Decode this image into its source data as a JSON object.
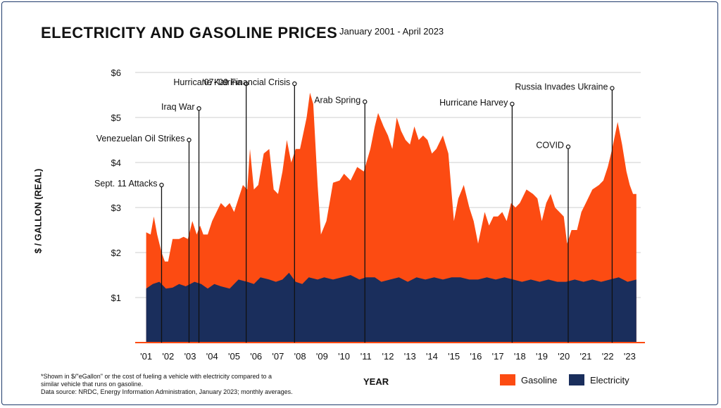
{
  "chart_data": {
    "type": "area",
    "title": "ELECTRICITY AND GASOLINE PRICES",
    "subtitle": "January 2001 - April 2023",
    "xlabel": "YEAR",
    "ylabel": "$ / GALLON (REAL)",
    "ylim": [
      0,
      6
    ],
    "y_ticks": [
      "$1",
      "$2",
      "$3",
      "$4",
      "$5",
      "$6"
    ],
    "x_ticks": [
      "'01",
      "'02",
      "'03",
      "'04",
      "'05",
      "'06",
      "'07",
      "'08",
      "'09",
      "'10",
      "'11",
      "'12",
      "'13",
      "'14",
      "'15",
      "'16",
      "'17",
      "'18",
      "'19",
      "'20",
      "'21",
      "'22",
      "'23"
    ],
    "grid": "horizontal",
    "legend_position": "bottom-right",
    "series": [
      {
        "name": "Gasoline",
        "color": "#fc4b12",
        "points": [
          [
            2001.0,
            2.45
          ],
          [
            2001.2,
            2.4
          ],
          [
            2001.35,
            2.8
          ],
          [
            2001.5,
            2.4
          ],
          [
            2001.7,
            2.0
          ],
          [
            2001.85,
            1.8
          ],
          [
            2002.0,
            1.8
          ],
          [
            2002.2,
            2.3
          ],
          [
            2002.5,
            2.3
          ],
          [
            2002.7,
            2.35
          ],
          [
            2002.9,
            2.3
          ],
          [
            2003.1,
            2.7
          ],
          [
            2003.3,
            2.4
          ],
          [
            2003.45,
            2.6
          ],
          [
            2003.6,
            2.4
          ],
          [
            2003.8,
            2.4
          ],
          [
            2004.0,
            2.7
          ],
          [
            2004.2,
            2.9
          ],
          [
            2004.4,
            3.1
          ],
          [
            2004.6,
            3.0
          ],
          [
            2004.8,
            3.1
          ],
          [
            2005.0,
            2.9
          ],
          [
            2005.2,
            3.2
          ],
          [
            2005.4,
            3.5
          ],
          [
            2005.6,
            3.4
          ],
          [
            2005.72,
            4.3
          ],
          [
            2005.9,
            3.4
          ],
          [
            2006.1,
            3.5
          ],
          [
            2006.35,
            4.2
          ],
          [
            2006.6,
            4.3
          ],
          [
            2006.8,
            3.4
          ],
          [
            2007.0,
            3.3
          ],
          [
            2007.2,
            3.8
          ],
          [
            2007.4,
            4.5
          ],
          [
            2007.6,
            4.0
          ],
          [
            2007.8,
            4.3
          ],
          [
            2008.0,
            4.3
          ],
          [
            2008.3,
            5.0
          ],
          [
            2008.45,
            5.55
          ],
          [
            2008.6,
            5.3
          ],
          [
            2008.8,
            3.5
          ],
          [
            2008.95,
            2.4
          ],
          [
            2009.2,
            2.7
          ],
          [
            2009.5,
            3.55
          ],
          [
            2009.8,
            3.6
          ],
          [
            2010.0,
            3.75
          ],
          [
            2010.3,
            3.6
          ],
          [
            2010.6,
            3.9
          ],
          [
            2010.9,
            3.8
          ],
          [
            2011.2,
            4.3
          ],
          [
            2011.4,
            4.8
          ],
          [
            2011.55,
            5.1
          ],
          [
            2011.8,
            4.8
          ],
          [
            2012.0,
            4.6
          ],
          [
            2012.2,
            4.3
          ],
          [
            2012.4,
            5.0
          ],
          [
            2012.6,
            4.7
          ],
          [
            2012.8,
            4.5
          ],
          [
            2013.0,
            4.4
          ],
          [
            2013.2,
            4.8
          ],
          [
            2013.4,
            4.5
          ],
          [
            2013.6,
            4.6
          ],
          [
            2013.8,
            4.5
          ],
          [
            2014.0,
            4.2
          ],
          [
            2014.2,
            4.3
          ],
          [
            2014.5,
            4.6
          ],
          [
            2014.75,
            4.2
          ],
          [
            2015.0,
            2.7
          ],
          [
            2015.2,
            3.2
          ],
          [
            2015.45,
            3.5
          ],
          [
            2015.7,
            3.0
          ],
          [
            2015.9,
            2.7
          ],
          [
            2016.1,
            2.2
          ],
          [
            2016.4,
            2.9
          ],
          [
            2016.6,
            2.6
          ],
          [
            2016.8,
            2.8
          ],
          [
            2017.0,
            2.8
          ],
          [
            2017.2,
            2.9
          ],
          [
            2017.4,
            2.7
          ],
          [
            2017.6,
            3.1
          ],
          [
            2017.8,
            3.0
          ],
          [
            2018.0,
            3.1
          ],
          [
            2018.3,
            3.4
          ],
          [
            2018.6,
            3.3
          ],
          [
            2018.8,
            3.2
          ],
          [
            2019.0,
            2.7
          ],
          [
            2019.2,
            3.1
          ],
          [
            2019.4,
            3.3
          ],
          [
            2019.6,
            3.0
          ],
          [
            2019.8,
            2.9
          ],
          [
            2020.0,
            2.8
          ],
          [
            2020.15,
            2.2
          ],
          [
            2020.35,
            2.5
          ],
          [
            2020.6,
            2.5
          ],
          [
            2020.8,
            2.9
          ],
          [
            2021.0,
            3.1
          ],
          [
            2021.3,
            3.4
          ],
          [
            2021.6,
            3.5
          ],
          [
            2021.8,
            3.6
          ],
          [
            2022.0,
            3.9
          ],
          [
            2022.2,
            4.3
          ],
          [
            2022.45,
            4.9
          ],
          [
            2022.65,
            4.4
          ],
          [
            2022.85,
            3.8
          ],
          [
            2023.0,
            3.5
          ],
          [
            2023.15,
            3.3
          ],
          [
            2023.3,
            3.3
          ]
        ]
      },
      {
        "name": "Electricity",
        "color": "#1a2e5c",
        "points": [
          [
            2001.0,
            1.2
          ],
          [
            2001.3,
            1.3
          ],
          [
            2001.6,
            1.35
          ],
          [
            2001.9,
            1.2
          ],
          [
            2002.2,
            1.22
          ],
          [
            2002.5,
            1.3
          ],
          [
            2002.8,
            1.25
          ],
          [
            2003.2,
            1.35
          ],
          [
            2003.5,
            1.3
          ],
          [
            2003.8,
            1.2
          ],
          [
            2004.1,
            1.3
          ],
          [
            2004.4,
            1.25
          ],
          [
            2004.8,
            1.2
          ],
          [
            2005.2,
            1.4
          ],
          [
            2005.6,
            1.35
          ],
          [
            2005.9,
            1.3
          ],
          [
            2006.2,
            1.45
          ],
          [
            2006.6,
            1.4
          ],
          [
            2006.9,
            1.35
          ],
          [
            2007.2,
            1.4
          ],
          [
            2007.5,
            1.55
          ],
          [
            2007.8,
            1.35
          ],
          [
            2008.1,
            1.3
          ],
          [
            2008.4,
            1.45
          ],
          [
            2008.8,
            1.4
          ],
          [
            2009.1,
            1.45
          ],
          [
            2009.5,
            1.4
          ],
          [
            2009.9,
            1.45
          ],
          [
            2010.3,
            1.5
          ],
          [
            2010.7,
            1.4
          ],
          [
            2011.0,
            1.45
          ],
          [
            2011.4,
            1.45
          ],
          [
            2011.7,
            1.35
          ],
          [
            2012.1,
            1.4
          ],
          [
            2012.5,
            1.45
          ],
          [
            2012.9,
            1.35
          ],
          [
            2013.3,
            1.45
          ],
          [
            2013.7,
            1.4
          ],
          [
            2014.1,
            1.45
          ],
          [
            2014.5,
            1.4
          ],
          [
            2014.9,
            1.45
          ],
          [
            2015.3,
            1.45
          ],
          [
            2015.7,
            1.4
          ],
          [
            2016.1,
            1.4
          ],
          [
            2016.5,
            1.45
          ],
          [
            2016.9,
            1.4
          ],
          [
            2017.3,
            1.45
          ],
          [
            2017.7,
            1.4
          ],
          [
            2018.1,
            1.35
          ],
          [
            2018.5,
            1.4
          ],
          [
            2018.9,
            1.35
          ],
          [
            2019.3,
            1.4
          ],
          [
            2019.7,
            1.35
          ],
          [
            2020.1,
            1.35
          ],
          [
            2020.5,
            1.4
          ],
          [
            2020.9,
            1.35
          ],
          [
            2021.3,
            1.4
          ],
          [
            2021.7,
            1.35
          ],
          [
            2022.1,
            1.4
          ],
          [
            2022.5,
            1.45
          ],
          [
            2022.9,
            1.35
          ],
          [
            2023.3,
            1.4
          ]
        ]
      }
    ],
    "annotations": [
      {
        "label": "Sept. 11 Attacks",
        "x": 2001.7,
        "y": 3.5
      },
      {
        "label": "Venezuelan Oil Strikes",
        "x": 2002.95,
        "y": 4.5
      },
      {
        "label": "Iraq War",
        "x": 2003.4,
        "y": 5.2
      },
      {
        "label": "Hurricane Katrina",
        "x": 2005.55,
        "y": 5.75
      },
      {
        "label": "'07-'09 Financial Crisis",
        "x": 2007.75,
        "y": 5.75
      },
      {
        "label": "Arab Spring",
        "x": 2010.95,
        "y": 5.35
      },
      {
        "label": "Hurricane Harvey",
        "x": 2017.65,
        "y": 5.3
      },
      {
        "label": "COVID",
        "x": 2020.2,
        "y": 4.35
      },
      {
        "label": "Russia Invades Ukraine",
        "x": 2022.2,
        "y": 5.65
      }
    ]
  },
  "footnote": {
    "line1": "*Shown in $/\"eGallon\" or the cost of fueling a vehicle with electricity compared to a",
    "line2": "similar vehicle that runs on gasoline.",
    "line3": "Data source: NRDC, Energy Information Administration, January 2023; monthly averages."
  },
  "legend": {
    "gasoline_label": "Gasoline",
    "electricity_label": "Electricity"
  }
}
